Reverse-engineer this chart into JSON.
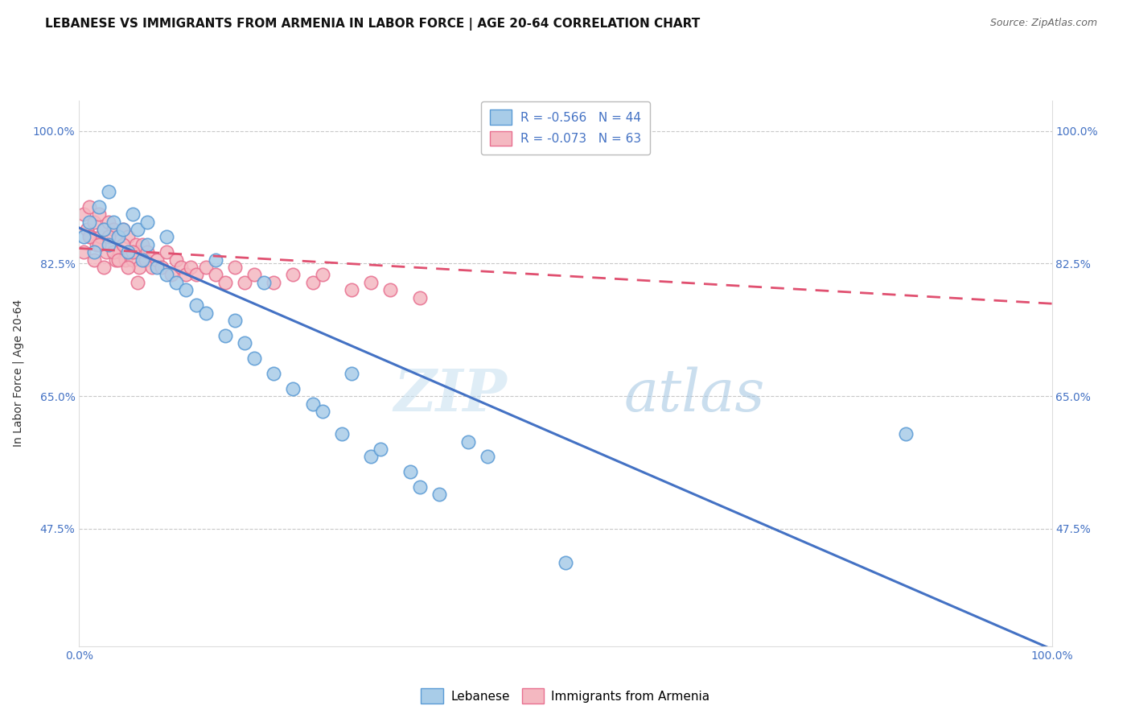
{
  "title": "LEBANESE VS IMMIGRANTS FROM ARMENIA IN LABOR FORCE | AGE 20-64 CORRELATION CHART",
  "source": "Source: ZipAtlas.com",
  "ylabel": "In Labor Force | Age 20-64",
  "xlim": [
    0.0,
    1.0
  ],
  "ylim": [
    0.32,
    1.04
  ],
  "yticks": [
    0.475,
    0.65,
    0.825,
    1.0
  ],
  "ytick_labels": [
    "47.5%",
    "65.0%",
    "82.5%",
    "100.0%"
  ],
  "xtick_labels": [
    "0.0%",
    "100.0%"
  ],
  "r_blue": "-0.566",
  "n_blue": "44",
  "r_pink": "-0.073",
  "n_pink": "63",
  "legend_labels": [
    "Lebanese",
    "Immigrants from Armenia"
  ],
  "blue_color": "#a8cce8",
  "pink_color": "#f4b8c1",
  "blue_edge_color": "#5b9bd5",
  "pink_edge_color": "#e87090",
  "blue_line_color": "#4472c4",
  "pink_line_color": "#e05070",
  "watermark_zip": "ZIP",
  "watermark_atlas": "atlas",
  "blue_scatter_x": [
    0.005,
    0.01,
    0.015,
    0.02,
    0.025,
    0.03,
    0.035,
    0.04,
    0.045,
    0.05,
    0.055,
    0.06,
    0.065,
    0.07,
    0.08,
    0.09,
    0.1,
    0.11,
    0.12,
    0.13,
    0.15,
    0.16,
    0.17,
    0.18,
    0.2,
    0.22,
    0.24,
    0.25,
    0.27,
    0.3,
    0.31,
    0.34,
    0.37,
    0.4,
    0.42,
    0.03,
    0.07,
    0.09,
    0.14,
    0.19,
    0.28,
    0.85,
    0.35,
    0.5
  ],
  "blue_scatter_y": [
    0.86,
    0.88,
    0.84,
    0.9,
    0.87,
    0.85,
    0.88,
    0.86,
    0.87,
    0.84,
    0.89,
    0.87,
    0.83,
    0.85,
    0.82,
    0.81,
    0.8,
    0.79,
    0.77,
    0.76,
    0.73,
    0.75,
    0.72,
    0.7,
    0.68,
    0.66,
    0.64,
    0.63,
    0.6,
    0.57,
    0.58,
    0.55,
    0.52,
    0.59,
    0.57,
    0.92,
    0.88,
    0.86,
    0.83,
    0.8,
    0.68,
    0.6,
    0.53,
    0.43
  ],
  "pink_scatter_x": [
    0.005,
    0.008,
    0.01,
    0.012,
    0.015,
    0.018,
    0.02,
    0.022,
    0.025,
    0.028,
    0.03,
    0.032,
    0.035,
    0.038,
    0.04,
    0.042,
    0.045,
    0.048,
    0.05,
    0.052,
    0.055,
    0.058,
    0.06,
    0.062,
    0.065,
    0.068,
    0.07,
    0.075,
    0.08,
    0.085,
    0.09,
    0.095,
    0.1,
    0.105,
    0.11,
    0.115,
    0.12,
    0.13,
    0.14,
    0.15,
    0.16,
    0.17,
    0.18,
    0.2,
    0.22,
    0.24,
    0.25,
    0.28,
    0.3,
    0.32,
    0.005,
    0.01,
    0.015,
    0.02,
    0.025,
    0.03,
    0.035,
    0.04,
    0.045,
    0.05,
    0.055,
    0.06,
    0.35
  ],
  "pink_scatter_y": [
    0.89,
    0.87,
    0.9,
    0.86,
    0.88,
    0.85,
    0.89,
    0.86,
    0.87,
    0.84,
    0.88,
    0.85,
    0.87,
    0.83,
    0.86,
    0.84,
    0.87,
    0.83,
    0.86,
    0.84,
    0.83,
    0.85,
    0.84,
    0.82,
    0.85,
    0.83,
    0.84,
    0.82,
    0.83,
    0.82,
    0.84,
    0.81,
    0.83,
    0.82,
    0.81,
    0.82,
    0.81,
    0.82,
    0.81,
    0.8,
    0.82,
    0.8,
    0.81,
    0.8,
    0.81,
    0.8,
    0.81,
    0.79,
    0.8,
    0.79,
    0.84,
    0.86,
    0.83,
    0.85,
    0.82,
    0.86,
    0.84,
    0.83,
    0.85,
    0.82,
    0.84,
    0.8,
    0.78
  ],
  "blue_trend_y_start": 0.872,
  "blue_trend_y_end": 0.316,
  "pink_trend_y_start": 0.845,
  "pink_trend_y_end": 0.772,
  "grid_color": "#c8c8c8",
  "background_color": "#ffffff",
  "title_fontsize": 11,
  "axis_label_fontsize": 10,
  "tick_fontsize": 10,
  "legend_fontsize": 11
}
